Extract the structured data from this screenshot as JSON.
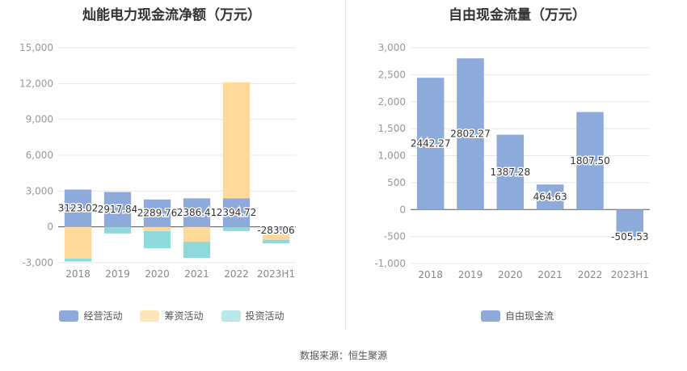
{
  "chart_data": [
    {
      "type": "bar",
      "stacked": true,
      "title": "灿能电力现金流净额（万元）",
      "categories": [
        "2018",
        "2019",
        "2020",
        "2021",
        "2022",
        "2023H1"
      ],
      "series": [
        {
          "name": "经营活动",
          "color": "#8eaadb",
          "values": [
            3123.02,
            2917.84,
            2289.76,
            2386.41,
            2394.72,
            -283.06
          ]
        },
        {
          "name": "筹资活动",
          "color": "#ffd99a",
          "values": [
            -2650,
            0,
            -350,
            -1250,
            9700,
            -800
          ]
        },
        {
          "name": "投资活动",
          "color": "#8fd9db",
          "values": [
            -250,
            -550,
            -1450,
            -1350,
            -350,
            -300
          ]
        }
      ],
      "data_labels": [
        "3123.02",
        "2917.84",
        "2289.76",
        "2386.41",
        "2394.72",
        "-283.06"
      ],
      "ylim": [
        -3000,
        15000
      ],
      "yticks": [
        -3000,
        0,
        3000,
        6000,
        9000,
        12000,
        15000
      ],
      "ytick_labels": [
        "-3,000",
        "0",
        "3,000",
        "6,000",
        "9,000",
        "12,000",
        "15,000"
      ],
      "legend_position": "bottom"
    },
    {
      "type": "bar",
      "title": "自由现金流量（万元）",
      "categories": [
        "2018",
        "2019",
        "2020",
        "2021",
        "2022",
        "2023H1"
      ],
      "series": [
        {
          "name": "自由现金流",
          "color": "#8eaadb",
          "values": [
            2442.27,
            2802.27,
            1387.28,
            464.63,
            1807.5,
            -505.53
          ]
        }
      ],
      "data_labels": [
        "2442.27",
        "2802.27",
        "1387.28",
        "464.63",
        "1807.50",
        "-505.53"
      ],
      "ylim": [
        -1000,
        3000
      ],
      "yticks": [
        -1000,
        -500,
        0,
        500,
        1000,
        1500,
        2000,
        2500,
        3000
      ],
      "ytick_labels": [
        "-1,000",
        "-500",
        "0",
        "500",
        "1,000",
        "1,500",
        "2,000",
        "2,500",
        "3,000"
      ],
      "legend_position": "bottom"
    }
  ],
  "source": "数据来源：恒生聚源"
}
